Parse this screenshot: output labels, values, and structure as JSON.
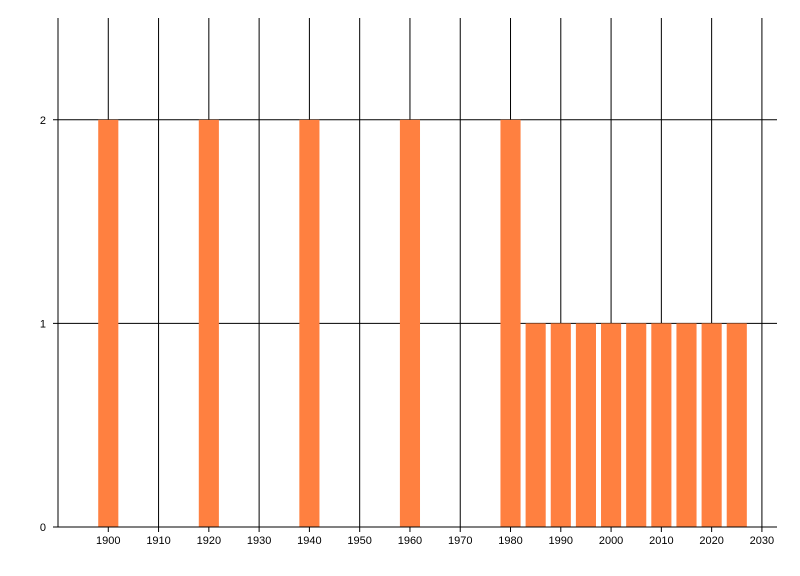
{
  "chart_data": {
    "type": "bar",
    "title": "",
    "xlabel": "",
    "ylabel": "",
    "xlim": [
      1890,
      2033
    ],
    "ylim": [
      0,
      2.5
    ],
    "x_ticks": [
      1900,
      1910,
      1920,
      1930,
      1940,
      1950,
      1960,
      1970,
      1980,
      1990,
      2000,
      2010,
      2020,
      2030
    ],
    "y_ticks": [
      0,
      1,
      2
    ],
    "grid": true,
    "legend": "none",
    "bar_color": "#ff8040",
    "bars": [
      {
        "x": 1900,
        "value": 2
      },
      {
        "x": 1920,
        "value": 2
      },
      {
        "x": 1940,
        "value": 2
      },
      {
        "x": 1960,
        "value": 2
      },
      {
        "x": 1980,
        "value": 2
      },
      {
        "x": 1985,
        "value": 1
      },
      {
        "x": 1990,
        "value": 1
      },
      {
        "x": 1995,
        "value": 1
      },
      {
        "x": 2000,
        "value": 1
      },
      {
        "x": 2005,
        "value": 1
      },
      {
        "x": 2010,
        "value": 1
      },
      {
        "x": 2015,
        "value": 1
      },
      {
        "x": 2020,
        "value": 1
      },
      {
        "x": 2025,
        "value": 1
      }
    ]
  }
}
